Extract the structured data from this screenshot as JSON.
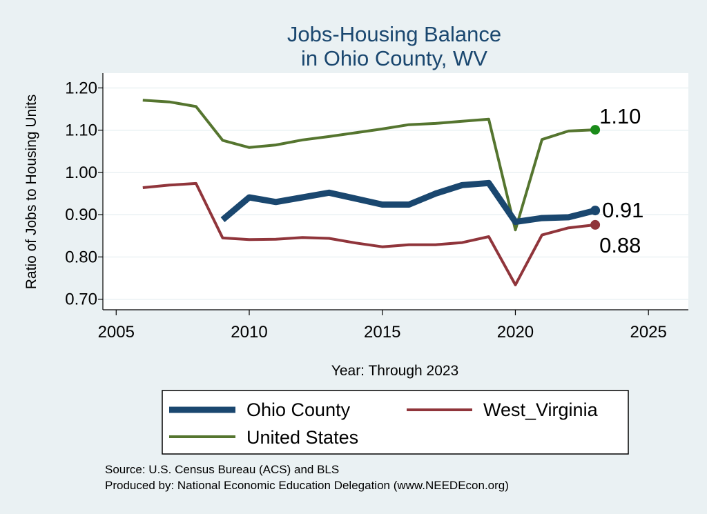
{
  "chart_data": {
    "type": "line",
    "title": [
      "Jobs-Housing Balance",
      "in Ohio County, WV"
    ],
    "xlabel": "Year: Through 2023",
    "ylabel": "Ratio of Jobs to Housing Units",
    "xlim": [
      2004.5,
      2026.5
    ],
    "ylim": [
      0.675,
      1.235
    ],
    "xticks": [
      2005,
      2010,
      2015,
      2020,
      2025
    ],
    "yticks": [
      0.7,
      0.8,
      0.9,
      1.0,
      1.1,
      1.2
    ],
    "ytick_labels": [
      "0.70",
      "0.80",
      "0.90",
      "1.00",
      "1.10",
      "1.20"
    ],
    "grid": true,
    "series": [
      {
        "name": "Ohio County",
        "color": "#1a476f",
        "width": 9,
        "x": [
          2009,
          2010,
          2011,
          2012,
          2013,
          2014,
          2015,
          2016,
          2017,
          2018,
          2019,
          2020,
          2021,
          2022,
          2023
        ],
        "values": [
          0.888,
          0.941,
          0.93,
          0.941,
          0.952,
          0.938,
          0.924,
          0.924,
          0.95,
          0.97,
          0.975,
          0.883,
          0.892,
          0.894,
          0.91
        ],
        "end_label": "0.91"
      },
      {
        "name": "West_Virginia",
        "color": "#90353b",
        "width": 4,
        "x": [
          2006,
          2007,
          2008,
          2009,
          2010,
          2011,
          2012,
          2013,
          2014,
          2015,
          2016,
          2017,
          2018,
          2019,
          2020,
          2021,
          2022,
          2023
        ],
        "values": [
          0.964,
          0.97,
          0.974,
          0.845,
          0.841,
          0.842,
          0.846,
          0.844,
          0.833,
          0.824,
          0.829,
          0.829,
          0.834,
          0.848,
          0.734,
          0.852,
          0.869,
          0.876
        ],
        "end_label": "0.88"
      },
      {
        "name": "United States",
        "color": "#55752f",
        "width": 4,
        "x": [
          2006,
          2007,
          2008,
          2009,
          2010,
          2011,
          2012,
          2013,
          2014,
          2015,
          2016,
          2017,
          2018,
          2019,
          2020,
          2021,
          2022,
          2023
        ],
        "values": [
          1.171,
          1.167,
          1.156,
          1.076,
          1.059,
          1.065,
          1.077,
          1.085,
          1.094,
          1.103,
          1.113,
          1.116,
          1.121,
          1.126,
          0.864,
          1.078,
          1.098,
          1.101
        ],
        "end_label": "1.10",
        "end_color": "#1a8b1a"
      }
    ],
    "legend": [
      "Ohio County",
      "West_Virginia",
      "United States"
    ]
  },
  "notes": {
    "source": "Source: U.S. Census Bureau (ACS) and BLS",
    "produced": "Produced by: National Economic Education Delegation (www.NEEDEcon.org)"
  }
}
